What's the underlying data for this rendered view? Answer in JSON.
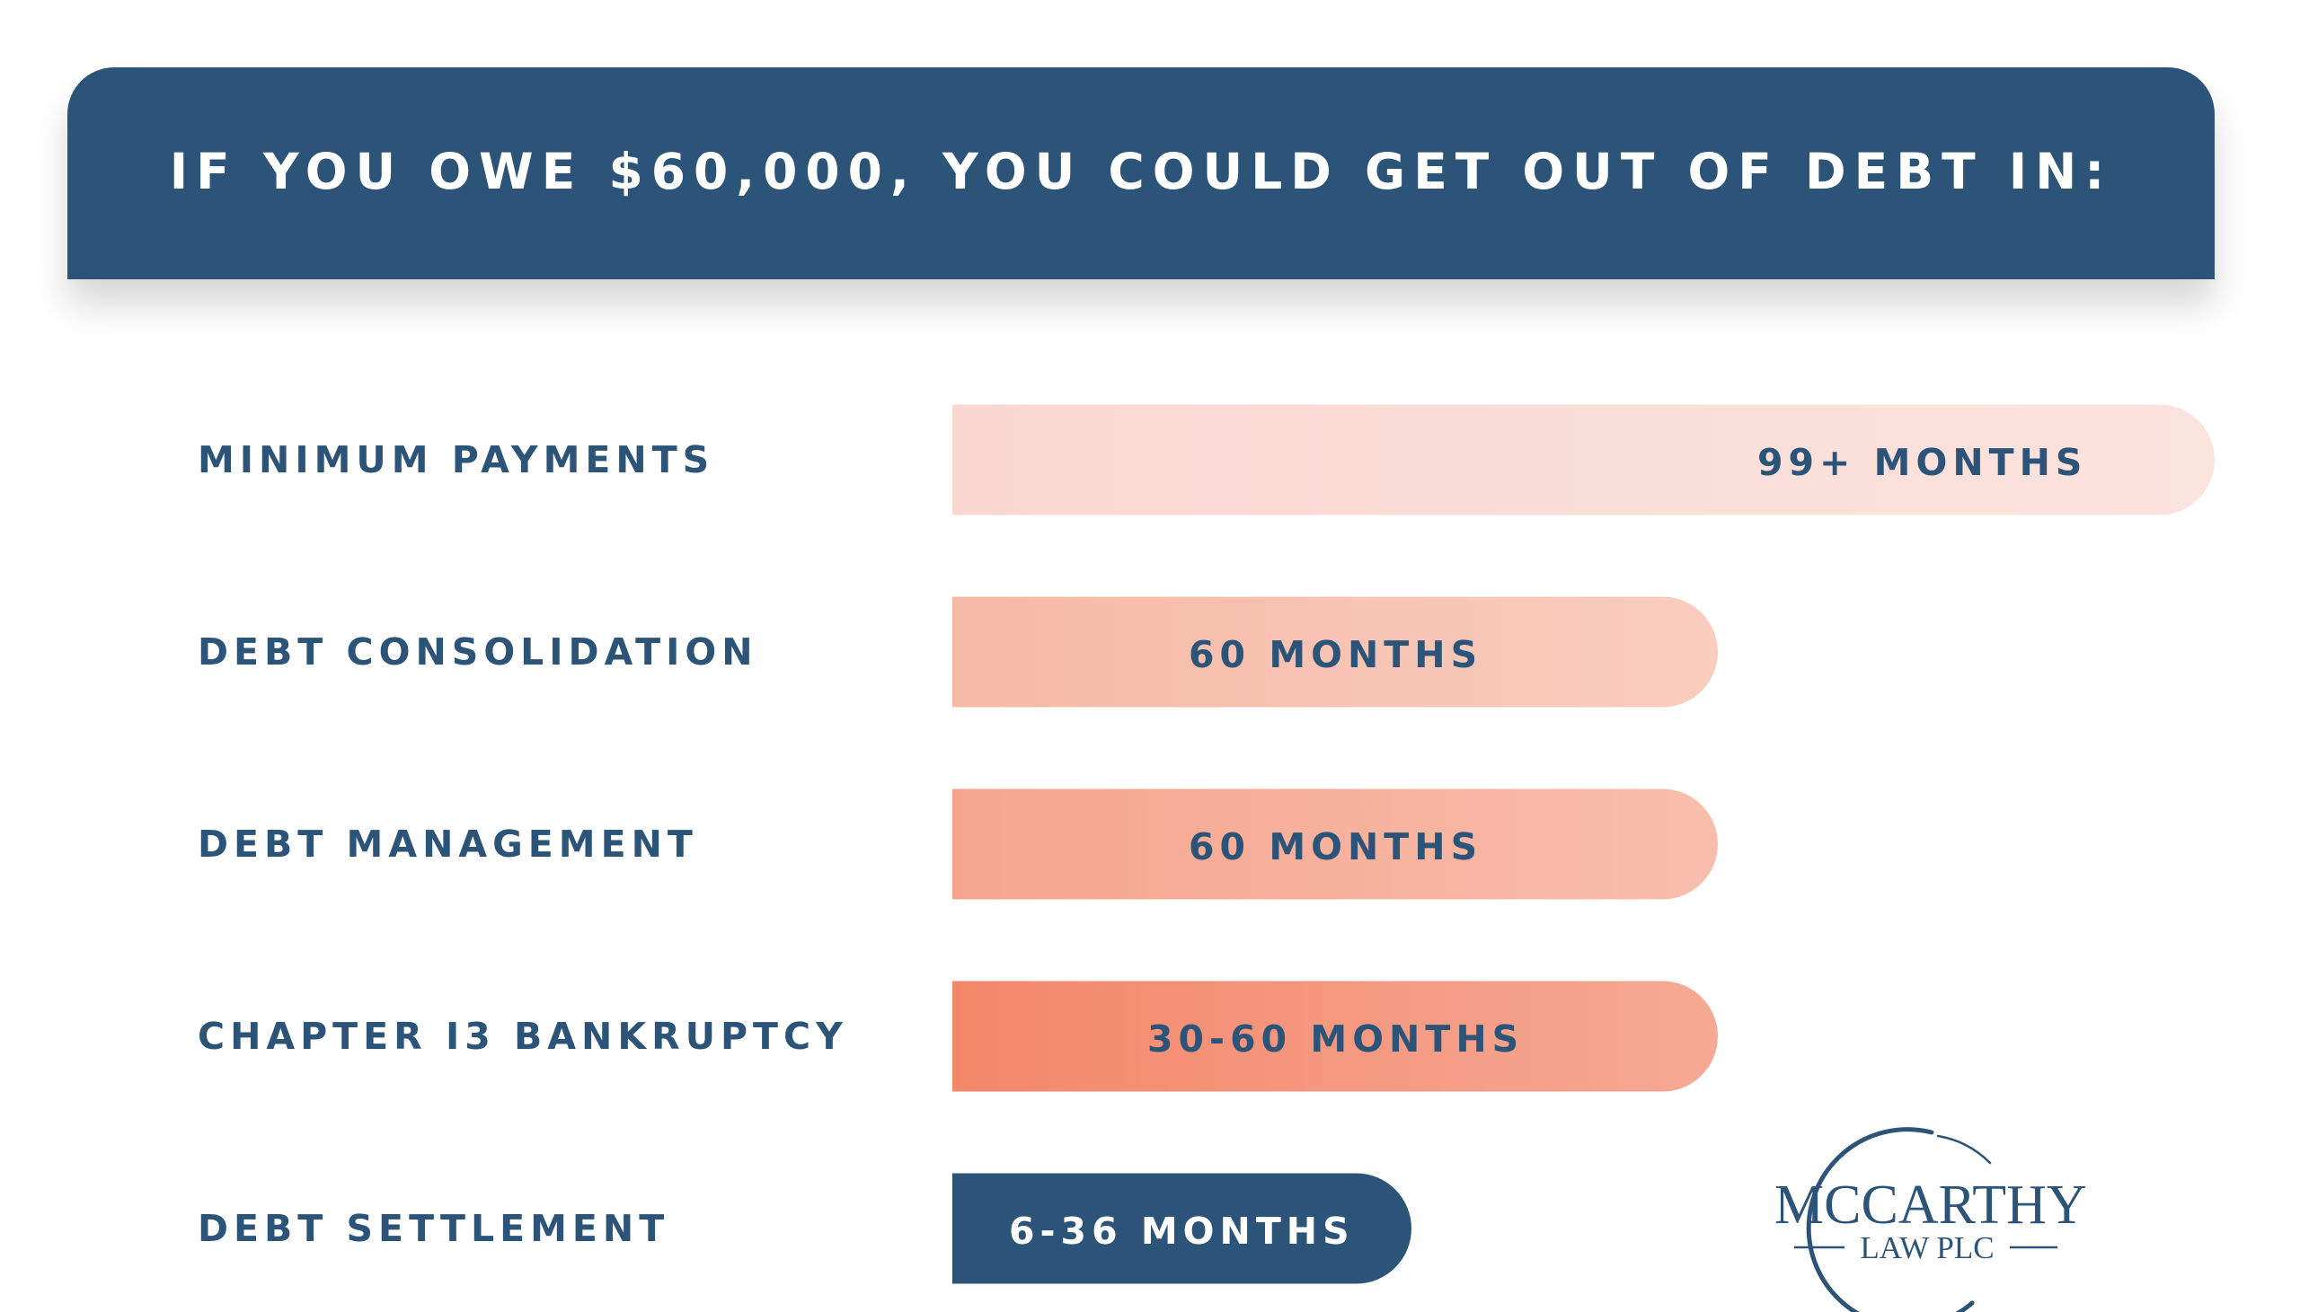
{
  "header": {
    "title": "IF YOU OWE $60,000, YOU COULD GET OUT OF DEBT IN:"
  },
  "chart_data": {
    "type": "bar",
    "orientation": "horizontal",
    "title": "IF YOU OWE $60,000, YOU COULD GET OUT OF DEBT IN:",
    "categories": [
      "MINIMUM PAYMENTS",
      "DEBT CONSOLIDATION",
      "DEBT MANAGEMENT",
      "CHAPTER 13 BANKRUPTCY",
      "DEBT SETTLEMENT"
    ],
    "category_display": [
      "MINIMUM PAYMENTS",
      "DEBT CONSOLIDATION",
      "DEBT MANAGEMENT",
      "CHAPTER I3 BANKRUPTCY",
      "DEBT SETTLEMENT"
    ],
    "value_labels": [
      "99+ MONTHS",
      "60 MONTHS",
      "60 MONTHS",
      "30-60 MONTHS",
      "6-36 MONTHS"
    ],
    "values": [
      99,
      60,
      60,
      60,
      36
    ],
    "value_ranges": [
      [
        99,
        null
      ],
      [
        60,
        60
      ],
      [
        60,
        60
      ],
      [
        30,
        60
      ],
      [
        6,
        36
      ]
    ],
    "unit": "MONTHS",
    "xlim": [
      0,
      99
    ],
    "grid": false,
    "legend": "none",
    "colors": {
      "bars": [
        "#fad8d1",
        "#f6b9a6",
        "#f5a58d",
        "#f3876a",
        "#2c5479"
      ],
      "bar_text": [
        "#2c5479",
        "#2c5479",
        "#2c5479",
        "#2c5479",
        "#ffffff"
      ],
      "label_text": "#2c5479",
      "header_bg": "#2c5479"
    }
  },
  "logo": {
    "name": "MCCARTHY",
    "subtitle": "LAW PLC",
    "color": "#2c5479"
  }
}
